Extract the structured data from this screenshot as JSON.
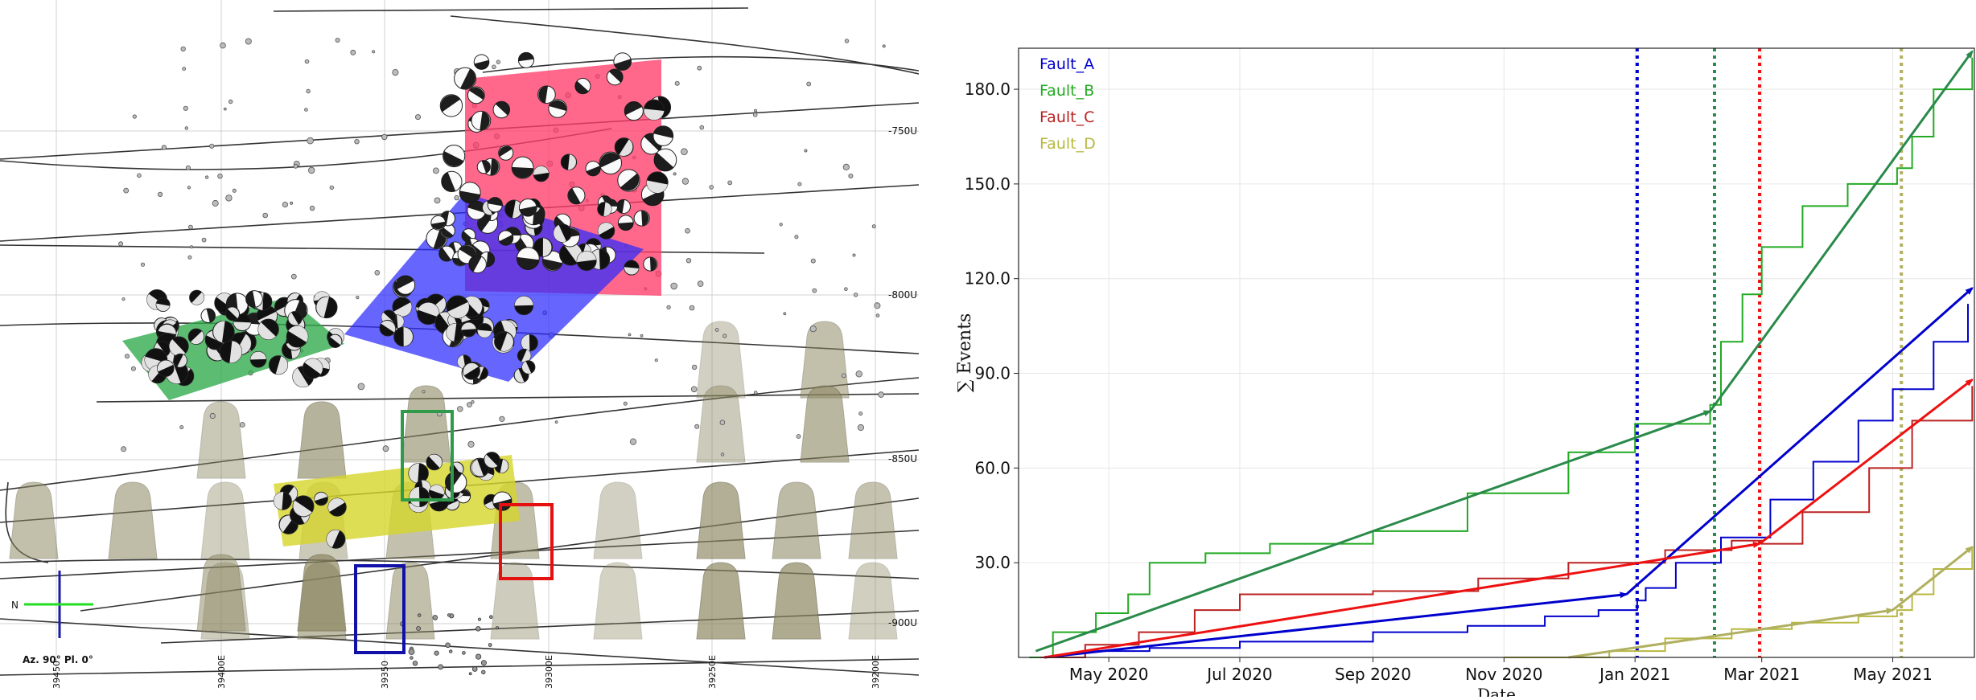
{
  "scene": {
    "depth_labels": [
      "-750U",
      "-800U",
      "-850U",
      "-900U"
    ],
    "easting_labels": [
      "39450",
      "39400E",
      "39350",
      "39300E",
      "39250E",
      "39200E"
    ],
    "compass": {
      "label": "N"
    },
    "orientation_label": "Az. 90° Pl. 0°",
    "colors": {
      "fault_a": "#2b2bff",
      "fault_b": "#2eaa4a",
      "fault_c": "#ff2d55",
      "fault_d": "#d6d62a",
      "stope": "#8b8660"
    }
  },
  "chart_data": {
    "type": "line",
    "title": "",
    "xlabel": "Date",
    "ylabel": "∑ Events",
    "x_ticks": [
      "May 2020",
      "Jul 2020",
      "Sep 2020",
      "Nov 2020",
      "Jan 2021",
      "Mar 2021",
      "May 2021"
    ],
    "x_tick_dates": [
      "2020-05-01",
      "2020-07-01",
      "2020-09-01",
      "2020-11-01",
      "2021-01-01",
      "2021-03-01",
      "2021-05-01"
    ],
    "xlim": [
      "2020-03-20",
      "2021-06-08"
    ],
    "ylim": [
      0,
      193
    ],
    "y_ticks": [
      "30.0",
      "60.0",
      "90.0",
      "120.0",
      "150.0",
      "180.0"
    ],
    "y_tick_values": [
      30,
      60,
      90,
      120,
      150,
      180
    ],
    "grid": true,
    "legend_position": "top-left",
    "series": [
      {
        "name": "Fault_A",
        "color": "#0000cc",
        "points": [
          [
            "2020-03-28",
            0
          ],
          [
            "2020-04-20",
            2
          ],
          [
            "2020-05-20",
            3
          ],
          [
            "2020-07-01",
            5
          ],
          [
            "2020-09-01",
            8
          ],
          [
            "2020-10-15",
            10
          ],
          [
            "2020-11-20",
            13
          ],
          [
            "2020-12-15",
            15
          ],
          [
            "2021-01-02",
            18
          ],
          [
            "2021-01-06",
            22
          ],
          [
            "2021-01-20",
            30
          ],
          [
            "2021-02-10",
            38
          ],
          [
            "2021-03-05",
            50
          ],
          [
            "2021-03-25",
            62
          ],
          [
            "2021-04-15",
            75
          ],
          [
            "2021-05-01",
            85
          ],
          [
            "2021-05-20",
            100
          ],
          [
            "2021-06-05",
            112
          ]
        ],
        "trend": [
          {
            "from": [
              "2020-04-01",
              0
            ],
            "to": [
              "2020-12-28",
              20
            ]
          },
          {
            "from": [
              "2020-12-28",
              20
            ],
            "to": [
              "2021-06-07",
              117
            ]
          }
        ],
        "event_date": "2021-01-02"
      },
      {
        "name": "Fault_B",
        "color": "#22aa22",
        "points": [
          [
            "2020-03-25",
            0
          ],
          [
            "2020-04-05",
            8
          ],
          [
            "2020-04-25",
            14
          ],
          [
            "2020-05-10",
            20
          ],
          [
            "2020-05-20",
            30
          ],
          [
            "2020-06-15",
            33
          ],
          [
            "2020-07-15",
            36
          ],
          [
            "2020-09-01",
            40
          ],
          [
            "2020-10-15",
            52
          ],
          [
            "2020-12-01",
            65
          ],
          [
            "2021-01-01",
            74
          ],
          [
            "2021-02-05",
            80
          ],
          [
            "2021-02-10",
            100
          ],
          [
            "2021-02-20",
            115
          ],
          [
            "2021-03-01",
            130
          ],
          [
            "2021-03-20",
            143
          ],
          [
            "2021-04-10",
            150
          ],
          [
            "2021-05-03",
            155
          ],
          [
            "2021-05-10",
            165
          ],
          [
            "2021-05-20",
            180
          ],
          [
            "2021-06-07",
            190
          ]
        ],
        "trend": [
          {
            "from": [
              "2020-03-28",
              2
            ],
            "to": [
              "2021-02-05",
              78
            ]
          },
          {
            "from": [
              "2021-02-05",
              78
            ],
            "to": [
              "2021-06-07",
              192
            ]
          }
        ],
        "trend_color": "#2a8a4a",
        "event_date": "2021-02-07"
      },
      {
        "name": "Fault_C",
        "color": "#bb2222",
        "points": [
          [
            "2020-03-30",
            0
          ],
          [
            "2020-04-20",
            4
          ],
          [
            "2020-05-15",
            8
          ],
          [
            "2020-06-10",
            15
          ],
          [
            "2020-07-01",
            20
          ],
          [
            "2020-09-01",
            21
          ],
          [
            "2020-10-20",
            25
          ],
          [
            "2020-12-01",
            30
          ],
          [
            "2021-01-15",
            34
          ],
          [
            "2021-02-15",
            37
          ],
          [
            "2021-03-01",
            36
          ],
          [
            "2021-03-20",
            46
          ],
          [
            "2021-04-20",
            60
          ],
          [
            "2021-05-10",
            75
          ],
          [
            "2021-06-07",
            86
          ]
        ],
        "trend": [
          {
            "from": [
              "2020-04-01",
              0
            ],
            "to": [
              "2021-02-28",
              36
            ]
          },
          {
            "from": [
              "2021-02-28",
              36
            ],
            "to": [
              "2021-06-07",
              88
            ]
          }
        ],
        "trend_color": "#ee1111",
        "event_date": "2021-02-28"
      },
      {
        "name": "Fault_D",
        "color": "#b8b840",
        "points": [
          [
            "2020-11-01",
            0
          ],
          [
            "2020-12-20",
            2
          ],
          [
            "2021-01-15",
            6
          ],
          [
            "2021-02-15",
            9
          ],
          [
            "2021-03-15",
            11
          ],
          [
            "2021-04-15",
            13
          ],
          [
            "2021-05-03",
            15
          ],
          [
            "2021-05-10",
            20
          ],
          [
            "2021-05-20",
            28
          ],
          [
            "2021-06-07",
            35
          ]
        ],
        "trend": [
          {
            "from": [
              "2020-12-01",
              0
            ],
            "to": [
              "2021-05-01",
              15
            ]
          },
          {
            "from": [
              "2021-05-01",
              15
            ],
            "to": [
              "2021-06-07",
              35
            ]
          }
        ],
        "trend_color": "#b0b060",
        "event_date": "2021-05-05"
      }
    ]
  }
}
